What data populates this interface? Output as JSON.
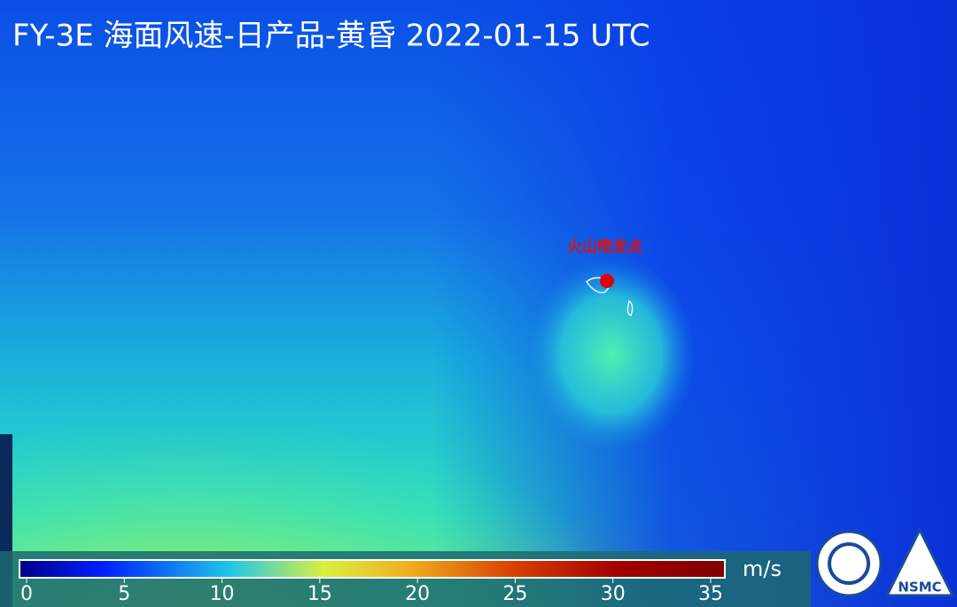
{
  "title": "FY-3E 海面风速-日产品-黄昏 2022-01-15 UTC",
  "annotation": "火山喷发点",
  "colorbar": {
    "unit": "m/s",
    "lim": [
      0,
      35
    ],
    "ticks": [
      0,
      5,
      10,
      15,
      20,
      25,
      30,
      35
    ]
  },
  "logo": "NSMC"
}
